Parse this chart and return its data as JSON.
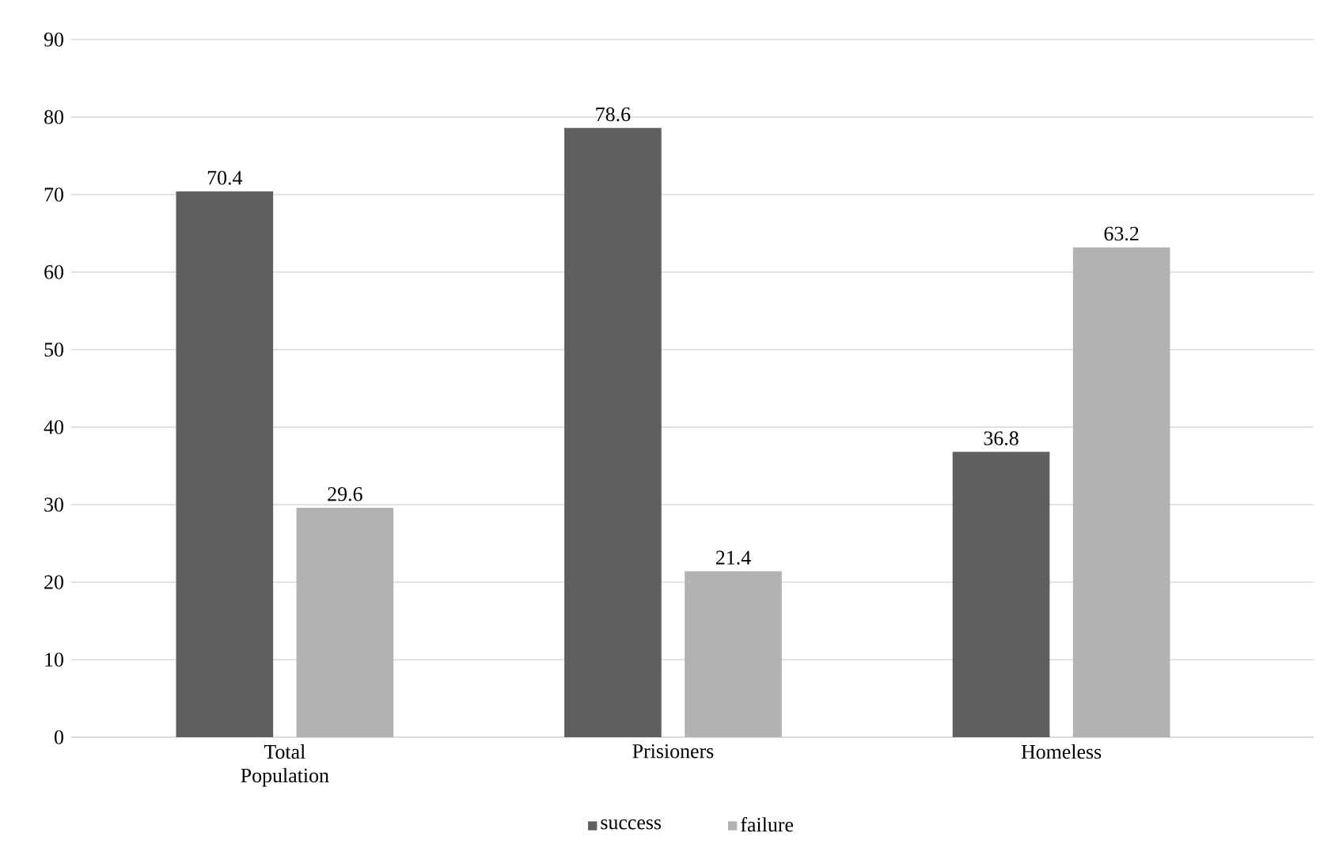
{
  "chart_data": {
    "type": "bar",
    "categories": [
      "Total Population",
      "Prisioners",
      "Homeless"
    ],
    "series": [
      {
        "name": "success",
        "color": "#5f5f5f",
        "values": [
          70.4,
          78.6,
          36.8
        ]
      },
      {
        "name": "failure",
        "color": "#b2b2b2",
        "values": [
          29.6,
          21.4,
          63.2
        ]
      }
    ],
    "ylim": [
      0,
      90
    ],
    "yticks": [
      0,
      10,
      20,
      30,
      40,
      50,
      60,
      70,
      80,
      90
    ],
    "grid": "y",
    "legend": "bottom",
    "data_labels": true
  }
}
